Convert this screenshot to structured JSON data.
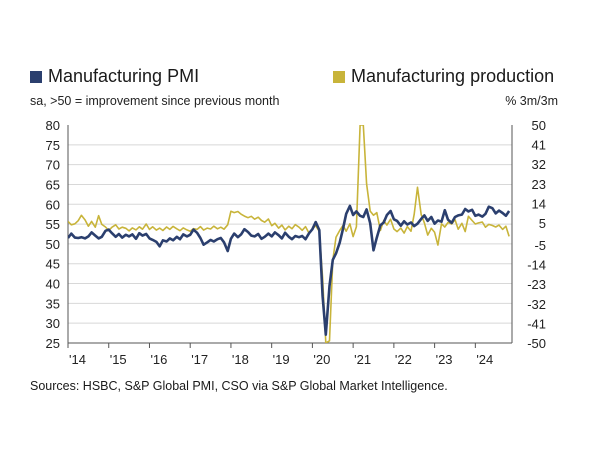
{
  "legend": {
    "pmi_label": "Manufacturing PMI",
    "prod_label": "Manufacturing production"
  },
  "subtitle": "sa, >50 = improvement since previous month",
  "right_unit": "% 3m/3m",
  "source": "Sources: HSBC, S&P Global PMI, CSO via S&P Global Market Intelligence.",
  "colors": {
    "pmi": "#2b3f6e",
    "production": "#c8b43a",
    "grid": "#d8d8d8"
  },
  "chart_data": {
    "type": "line",
    "x_range": [
      2014.0,
      2024.9
    ],
    "x_ticks": [
      {
        "x": 2014,
        "label": "'14"
      },
      {
        "x": 2015,
        "label": "'15"
      },
      {
        "x": 2016,
        "label": "'16"
      },
      {
        "x": 2017,
        "label": "'17"
      },
      {
        "x": 2018,
        "label": "'18"
      },
      {
        "x": 2019,
        "label": "'19"
      },
      {
        "x": 2020,
        "label": "'20"
      },
      {
        "x": 2021,
        "label": "'21"
      },
      {
        "x": 2022,
        "label": "'22"
      },
      {
        "x": 2023,
        "label": "'23"
      },
      {
        "x": 2024,
        "label": "'24"
      }
    ],
    "y_left": {
      "min": 25,
      "max": 80,
      "ticks": [
        80,
        75,
        70,
        65,
        60,
        55,
        50,
        45,
        40,
        35,
        30,
        25
      ]
    },
    "y_right": {
      "min": -50,
      "max": 50,
      "ticks": [
        50,
        41,
        32,
        23,
        14,
        5,
        -5,
        -14,
        -23,
        -32,
        -41,
        -50
      ]
    },
    "grid": "horizontal",
    "series": [
      {
        "name": "Manufacturing PMI",
        "axis": "left",
        "points": [
          [
            2014.0,
            51.5
          ],
          [
            2014.08,
            52.6
          ],
          [
            2014.17,
            51.6
          ],
          [
            2014.25,
            51.5
          ],
          [
            2014.33,
            51.7
          ],
          [
            2014.42,
            51.4
          ],
          [
            2014.5,
            51.9
          ],
          [
            2014.58,
            52.9
          ],
          [
            2014.67,
            52.1
          ],
          [
            2014.75,
            51.4
          ],
          [
            2014.83,
            51.8
          ],
          [
            2014.92,
            53.3
          ],
          [
            2015.0,
            53.6
          ],
          [
            2015.08,
            52.7
          ],
          [
            2015.17,
            51.8
          ],
          [
            2015.25,
            52.5
          ],
          [
            2015.33,
            51.6
          ],
          [
            2015.42,
            52.3
          ],
          [
            2015.5,
            51.9
          ],
          [
            2015.58,
            52.4
          ],
          [
            2015.67,
            51.3
          ],
          [
            2015.75,
            52.7
          ],
          [
            2015.83,
            52.1
          ],
          [
            2015.92,
            52.5
          ],
          [
            2016.0,
            51.4
          ],
          [
            2016.08,
            51.0
          ],
          [
            2016.17,
            50.5
          ],
          [
            2016.25,
            49.4
          ],
          [
            2016.33,
            50.9
          ],
          [
            2016.42,
            50.6
          ],
          [
            2016.5,
            51.4
          ],
          [
            2016.58,
            50.9
          ],
          [
            2016.67,
            51.8
          ],
          [
            2016.75,
            51.2
          ],
          [
            2016.83,
            52.4
          ],
          [
            2016.92,
            51.9
          ],
          [
            2017.0,
            52.3
          ],
          [
            2017.08,
            53.6
          ],
          [
            2017.17,
            52.8
          ],
          [
            2017.25,
            51.5
          ],
          [
            2017.33,
            49.8
          ],
          [
            2017.42,
            50.4
          ],
          [
            2017.5,
            51.0
          ],
          [
            2017.58,
            50.6
          ],
          [
            2017.67,
            51.2
          ],
          [
            2017.75,
            51.5
          ],
          [
            2017.83,
            50.4
          ],
          [
            2017.92,
            48.2
          ],
          [
            2018.0,
            51.3
          ],
          [
            2018.08,
            52.6
          ],
          [
            2018.17,
            51.7
          ],
          [
            2018.25,
            52.4
          ],
          [
            2018.33,
            53.7
          ],
          [
            2018.42,
            53.0
          ],
          [
            2018.5,
            52.1
          ],
          [
            2018.58,
            51.9
          ],
          [
            2018.67,
            52.5
          ],
          [
            2018.75,
            51.3
          ],
          [
            2018.83,
            51.8
          ],
          [
            2018.92,
            52.6
          ],
          [
            2019.0,
            51.9
          ],
          [
            2019.08,
            52.9
          ],
          [
            2019.17,
            52.2
          ],
          [
            2019.25,
            51.4
          ],
          [
            2019.33,
            52.8
          ],
          [
            2019.42,
            51.8
          ],
          [
            2019.5,
            51.2
          ],
          [
            2019.58,
            52.0
          ],
          [
            2019.67,
            51.7
          ],
          [
            2019.75,
            52.0
          ],
          [
            2019.83,
            51.2
          ],
          [
            2019.92,
            52.7
          ],
          [
            2020.0,
            53.7
          ],
          [
            2020.08,
            55.5
          ],
          [
            2020.17,
            53.5
          ],
          [
            2020.25,
            36.8
          ],
          [
            2020.33,
            27.1
          ],
          [
            2020.42,
            39.4
          ],
          [
            2020.5,
            46.0
          ],
          [
            2020.58,
            47.6
          ],
          [
            2020.67,
            50.3
          ],
          [
            2020.75,
            53.8
          ],
          [
            2020.83,
            57.6
          ],
          [
            2020.92,
            59.6
          ],
          [
            2021.0,
            57.3
          ],
          [
            2021.08,
            58.2
          ],
          [
            2021.17,
            57.1
          ],
          [
            2021.25,
            56.8
          ],
          [
            2021.33,
            58.7
          ],
          [
            2021.42,
            55.2
          ],
          [
            2021.5,
            48.4
          ],
          [
            2021.58,
            51.6
          ],
          [
            2021.67,
            54.7
          ],
          [
            2021.75,
            55.4
          ],
          [
            2021.83,
            57.3
          ],
          [
            2021.92,
            58.3
          ],
          [
            2022.0,
            56.2
          ],
          [
            2022.08,
            55.8
          ],
          [
            2022.17,
            54.6
          ],
          [
            2022.25,
            55.7
          ],
          [
            2022.33,
            54.9
          ],
          [
            2022.42,
            55.4
          ],
          [
            2022.5,
            54.5
          ],
          [
            2022.58,
            55.1
          ],
          [
            2022.67,
            56.3
          ],
          [
            2022.75,
            57.2
          ],
          [
            2022.83,
            55.8
          ],
          [
            2022.92,
            56.8
          ],
          [
            2023.0,
            55.1
          ],
          [
            2023.08,
            55.9
          ],
          [
            2023.17,
            55.6
          ],
          [
            2023.25,
            58.5
          ],
          [
            2023.33,
            56.1
          ],
          [
            2023.42,
            55.3
          ],
          [
            2023.5,
            56.8
          ],
          [
            2023.58,
            57.2
          ],
          [
            2023.67,
            57.4
          ],
          [
            2023.75,
            58.8
          ],
          [
            2023.83,
            58.2
          ],
          [
            2023.92,
            58.6
          ],
          [
            2024.0,
            57.1
          ],
          [
            2024.08,
            57.4
          ],
          [
            2024.17,
            56.9
          ],
          [
            2024.25,
            57.6
          ],
          [
            2024.33,
            59.4
          ],
          [
            2024.42,
            59.0
          ],
          [
            2024.5,
            57.7
          ],
          [
            2024.58,
            58.4
          ],
          [
            2024.67,
            57.8
          ],
          [
            2024.75,
            57.1
          ],
          [
            2024.83,
            58.3
          ]
        ]
      },
      {
        "name": "Manufacturing production",
        "axis": "right",
        "points": [
          [
            2014.0,
            5.8
          ],
          [
            2014.08,
            4.2
          ],
          [
            2014.17,
            4.7
          ],
          [
            2014.25,
            6.1
          ],
          [
            2014.33,
            8.6
          ],
          [
            2014.42,
            6.4
          ],
          [
            2014.5,
            3.6
          ],
          [
            2014.58,
            5.8
          ],
          [
            2014.67,
            3.1
          ],
          [
            2014.75,
            8.4
          ],
          [
            2014.83,
            4.4
          ],
          [
            2014.92,
            3.2
          ],
          [
            2015.0,
            1.6
          ],
          [
            2015.08,
            3.1
          ],
          [
            2015.17,
            4.2
          ],
          [
            2015.25,
            2.3
          ],
          [
            2015.33,
            3.1
          ],
          [
            2015.42,
            2.6
          ],
          [
            2015.5,
            1.4
          ],
          [
            2015.58,
            2.8
          ],
          [
            2015.67,
            1.9
          ],
          [
            2015.75,
            3.3
          ],
          [
            2015.83,
            2.2
          ],
          [
            2015.92,
            4.6
          ],
          [
            2016.0,
            2.1
          ],
          [
            2016.08,
            3.3
          ],
          [
            2016.17,
            1.8
          ],
          [
            2016.25,
            2.7
          ],
          [
            2016.33,
            1.6
          ],
          [
            2016.42,
            3.2
          ],
          [
            2016.5,
            2.1
          ],
          [
            2016.58,
            3.5
          ],
          [
            2016.67,
            2.4
          ],
          [
            2016.75,
            1.5
          ],
          [
            2016.83,
            2.8
          ],
          [
            2016.92,
            1.9
          ],
          [
            2017.0,
            1.3
          ],
          [
            2017.08,
            2.5
          ],
          [
            2017.17,
            2.1
          ],
          [
            2017.25,
            3.4
          ],
          [
            2017.33,
            1.8
          ],
          [
            2017.42,
            2.7
          ],
          [
            2017.5,
            2.3
          ],
          [
            2017.58,
            3.6
          ],
          [
            2017.67,
            2.4
          ],
          [
            2017.75,
            3.1
          ],
          [
            2017.83,
            2.2
          ],
          [
            2017.92,
            4.2
          ],
          [
            2018.0,
            10.4
          ],
          [
            2018.08,
            9.8
          ],
          [
            2018.17,
            10.3
          ],
          [
            2018.25,
            9.1
          ],
          [
            2018.33,
            8.2
          ],
          [
            2018.42,
            7.5
          ],
          [
            2018.5,
            8.1
          ],
          [
            2018.58,
            6.8
          ],
          [
            2018.67,
            7.7
          ],
          [
            2018.75,
            6.2
          ],
          [
            2018.83,
            5.4
          ],
          [
            2018.92,
            6.9
          ],
          [
            2019.0,
            3.8
          ],
          [
            2019.08,
            4.9
          ],
          [
            2019.17,
            2.7
          ],
          [
            2019.25,
            4.1
          ],
          [
            2019.33,
            1.9
          ],
          [
            2019.42,
            3.6
          ],
          [
            2019.5,
            2.4
          ],
          [
            2019.58,
            4.3
          ],
          [
            2019.67,
            3.1
          ],
          [
            2019.75,
            1.7
          ],
          [
            2019.83,
            3.4
          ],
          [
            2019.92,
            0.3
          ],
          [
            2020.0,
            2.4
          ],
          [
            2020.08,
            3.8
          ],
          [
            2020.17,
            1.2
          ],
          [
            2020.25,
            -20.0
          ],
          [
            2020.33,
            -50.0
          ],
          [
            2020.42,
            -49.0
          ],
          [
            2020.5,
            -12.0
          ],
          [
            2020.58,
            -1.5
          ],
          [
            2020.67,
            1.6
          ],
          [
            2020.75,
            3.9
          ],
          [
            2020.83,
            1.3
          ],
          [
            2020.92,
            4.7
          ],
          [
            2021.0,
            -1.2
          ],
          [
            2021.08,
            3.3
          ],
          [
            2021.17,
            50.0
          ],
          [
            2021.25,
            50.0
          ],
          [
            2021.33,
            23.0
          ],
          [
            2021.42,
            10.5
          ],
          [
            2021.5,
            8.6
          ],
          [
            2021.58,
            9.8
          ],
          [
            2021.67,
            1.6
          ],
          [
            2021.75,
            6.2
          ],
          [
            2021.83,
            4.1
          ],
          [
            2021.92,
            6.8
          ],
          [
            2022.0,
            2.3
          ],
          [
            2022.08,
            1.1
          ],
          [
            2022.17,
            2.7
          ],
          [
            2022.25,
            0.4
          ],
          [
            2022.33,
            3.4
          ],
          [
            2022.42,
            1.3
          ],
          [
            2022.5,
            9.1
          ],
          [
            2022.58,
            21.4
          ],
          [
            2022.67,
            8.9
          ],
          [
            2022.75,
            5.1
          ],
          [
            2022.83,
            -0.5
          ],
          [
            2022.92,
            2.6
          ],
          [
            2023.0,
            0.8
          ],
          [
            2023.08,
            -5.1
          ],
          [
            2023.17,
            4.7
          ],
          [
            2023.25,
            3.2
          ],
          [
            2023.33,
            5.3
          ],
          [
            2023.42,
            4.6
          ],
          [
            2023.5,
            6.6
          ],
          [
            2023.58,
            2.2
          ],
          [
            2023.67,
            4.9
          ],
          [
            2023.75,
            1.1
          ],
          [
            2023.83,
            8.1
          ],
          [
            2023.92,
            6.2
          ],
          [
            2024.0,
            4.6
          ],
          [
            2024.08,
            5.1
          ],
          [
            2024.17,
            5.5
          ],
          [
            2024.25,
            3.1
          ],
          [
            2024.33,
            4.4
          ],
          [
            2024.42,
            3.9
          ],
          [
            2024.5,
            3.2
          ],
          [
            2024.58,
            4.1
          ],
          [
            2024.67,
            2.1
          ],
          [
            2024.75,
            3.6
          ],
          [
            2024.83,
            -1.1
          ]
        ]
      }
    ]
  }
}
